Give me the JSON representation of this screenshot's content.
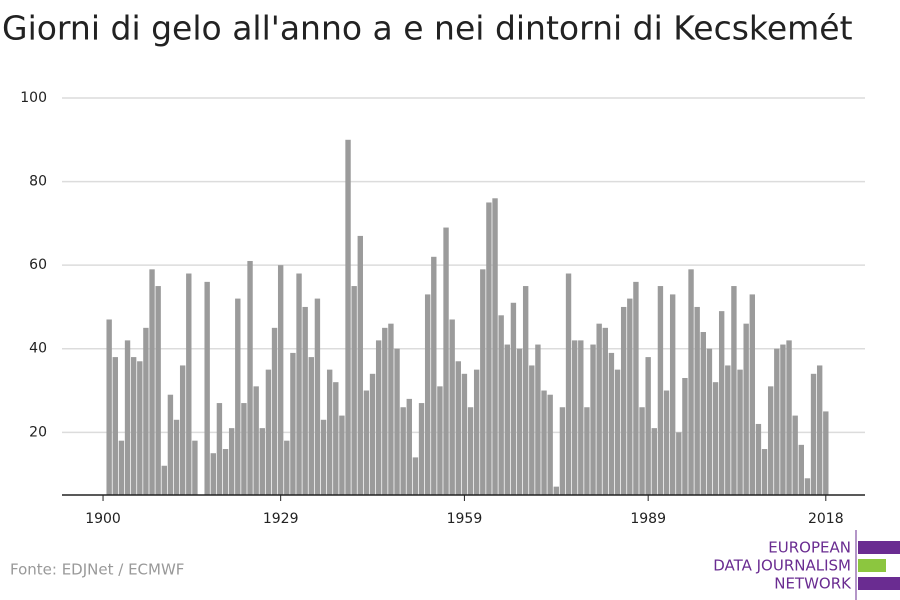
{
  "chart_data": {
    "type": "bar",
    "title": "Giorni di gelo all'anno a e nei dintorni di Kecskemét",
    "x": [
      1900,
      1901,
      1902,
      1903,
      1904,
      1905,
      1906,
      1907,
      1908,
      1909,
      1910,
      1911,
      1912,
      1913,
      1914,
      1915,
      1916,
      1917,
      1918,
      1919,
      1920,
      1921,
      1922,
      1923,
      1924,
      1925,
      1926,
      1927,
      1928,
      1929,
      1930,
      1931,
      1932,
      1933,
      1934,
      1935,
      1936,
      1937,
      1938,
      1939,
      1940,
      1941,
      1942,
      1943,
      1944,
      1945,
      1946,
      1947,
      1948,
      1949,
      1950,
      1951,
      1952,
      1953,
      1954,
      1955,
      1956,
      1957,
      1958,
      1959,
      1960,
      1961,
      1962,
      1963,
      1964,
      1965,
      1966,
      1967,
      1968,
      1969,
      1970,
      1971,
      1972,
      1973,
      1974,
      1975,
      1976,
      1977,
      1978,
      1979,
      1980,
      1981,
      1982,
      1983,
      1984,
      1985,
      1986,
      1987,
      1988,
      1989,
      1990,
      1991,
      1992,
      1993,
      1994,
      1995,
      1996,
      1997,
      1998,
      1999,
      2000,
      2001,
      2002,
      2003,
      2004,
      2005,
      2006,
      2007,
      2008,
      2009,
      2010,
      2011,
      2012,
      2013,
      2014,
      2015,
      2016,
      2017,
      2018
    ],
    "values": [
      null,
      47,
      38,
      18,
      42,
      38,
      37,
      45,
      59,
      55,
      12,
      29,
      23,
      36,
      58,
      18,
      5,
      56,
      15,
      27,
      16,
      21,
      52,
      27,
      61,
      31,
      21,
      35,
      45,
      60,
      18,
      39,
      58,
      50,
      38,
      52,
      23,
      35,
      32,
      24,
      90,
      55,
      67,
      30,
      34,
      42,
      45,
      46,
      40,
      26,
      28,
      14,
      27,
      53,
      62,
      31,
      69,
      47,
      37,
      34,
      26,
      35,
      59,
      75,
      76,
      48,
      41,
      51,
      40,
      55,
      36,
      41,
      30,
      29,
      7,
      26,
      58,
      42,
      42,
      26,
      41,
      46,
      45,
      39,
      35,
      50,
      52,
      56,
      26,
      38,
      21,
      55,
      30,
      53,
      20,
      33,
      59,
      50,
      44,
      40,
      32,
      49,
      36,
      55,
      35,
      46,
      53,
      22,
      16,
      31,
      40,
      41,
      42,
      24,
      17,
      9,
      34,
      36,
      25
    ],
    "color": "#9b9b9b",
    "xlim": [
      1893.3,
      2024.4
    ],
    "xticks": [
      1900,
      1929,
      1959,
      1989,
      2018
    ],
    "ylim": [
      5,
      100
    ],
    "yticks": [
      20,
      40,
      60,
      80,
      100
    ],
    "grid": true,
    "source": "Fonte: EDJNet / ECMWF",
    "logo": [
      "EUROPEAN",
      "DATA JOURNALISM",
      "NETWORK"
    ]
  }
}
